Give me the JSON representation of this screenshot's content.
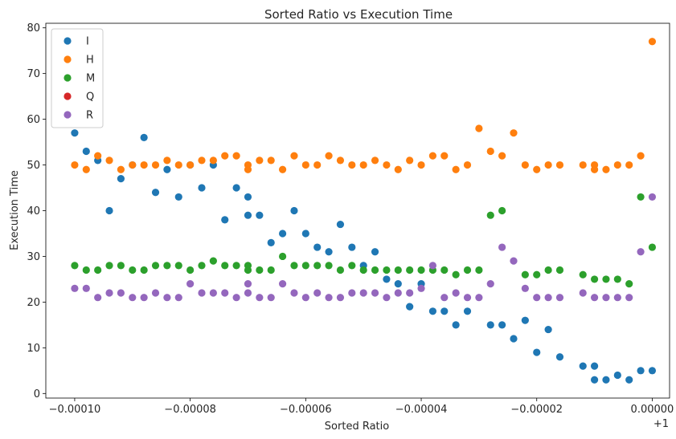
{
  "chart_data": {
    "type": "scatter",
    "title": "Sorted Ratio vs Execution Time",
    "xlabel": "Sorted Ratio",
    "ylabel": "Execution Time",
    "x_offset_label": "+1",
    "xlim": [
      -0.000105,
      3e-06
    ],
    "ylim": [
      -1,
      81
    ],
    "x_ticks": [
      -0.0001,
      -8e-05,
      -6e-05,
      -4e-05,
      -2e-05,
      0.0
    ],
    "x_tick_labels": [
      "−0.00010",
      "−0.00008",
      "−0.00006",
      "−0.00004",
      "−0.00002",
      "0.00000"
    ],
    "y_ticks": [
      0,
      10,
      20,
      30,
      40,
      50,
      60,
      70,
      80
    ],
    "y_tick_labels": [
      "0",
      "10",
      "20",
      "30",
      "40",
      "50",
      "60",
      "70",
      "80"
    ],
    "grid": false,
    "legend_position": "top-left",
    "series": [
      {
        "name": "I",
        "color": "#1f77b4",
        "points": [
          [
            -0.0001,
            57
          ],
          [
            -9.8e-05,
            53
          ],
          [
            -9.6e-05,
            51
          ],
          [
            -9.4e-05,
            40
          ],
          [
            -9.2e-05,
            47
          ],
          [
            -9e-05,
            50
          ],
          [
            -8.8e-05,
            56
          ],
          [
            -8.6e-05,
            44
          ],
          [
            -8.4e-05,
            49
          ],
          [
            -8.2e-05,
            43
          ],
          [
            -8e-05,
            50
          ],
          [
            -7.8e-05,
            45
          ],
          [
            -7.6e-05,
            50
          ],
          [
            -7.4e-05,
            38
          ],
          [
            -7.2e-05,
            45
          ],
          [
            -7e-05,
            43
          ],
          [
            -7e-05,
            39
          ],
          [
            -6.8e-05,
            39
          ],
          [
            -6.6e-05,
            33
          ],
          [
            -6.4e-05,
            35
          ],
          [
            -6.2e-05,
            40
          ],
          [
            -6e-05,
            35
          ],
          [
            -5.8e-05,
            32
          ],
          [
            -5.6e-05,
            31
          ],
          [
            -5.4e-05,
            37
          ],
          [
            -5.2e-05,
            32
          ],
          [
            -5e-05,
            28
          ],
          [
            -4.8e-05,
            31
          ],
          [
            -4.6e-05,
            25
          ],
          [
            -4.4e-05,
            24
          ],
          [
            -4.2e-05,
            19
          ],
          [
            -4e-05,
            24
          ],
          [
            -3.8e-05,
            18
          ],
          [
            -3.6e-05,
            18
          ],
          [
            -3.4e-05,
            15
          ],
          [
            -3.2e-05,
            18
          ],
          [
            -2.8e-05,
            15
          ],
          [
            -2.6e-05,
            15
          ],
          [
            -2.4e-05,
            12
          ],
          [
            -2.2e-05,
            16
          ],
          [
            -2e-05,
            9
          ],
          [
            -1.8e-05,
            14
          ],
          [
            -1.6e-05,
            8
          ],
          [
            -1.2e-05,
            6
          ],
          [
            -1e-05,
            6
          ],
          [
            -1e-05,
            3
          ],
          [
            -8e-06,
            3
          ],
          [
            -6e-06,
            4
          ],
          [
            -4e-06,
            3
          ],
          [
            -2e-06,
            5
          ],
          [
            0.0,
            5
          ]
        ]
      },
      {
        "name": "H",
        "color": "#ff7f0e",
        "points": [
          [
            -0.0001,
            50
          ],
          [
            -9.8e-05,
            49
          ],
          [
            -9.6e-05,
            52
          ],
          [
            -9.4e-05,
            51
          ],
          [
            -9.2e-05,
            49
          ],
          [
            -9e-05,
            50
          ],
          [
            -8.8e-05,
            50
          ],
          [
            -8.6e-05,
            50
          ],
          [
            -8.4e-05,
            51
          ],
          [
            -8.2e-05,
            50
          ],
          [
            -8e-05,
            50
          ],
          [
            -7.8e-05,
            51
          ],
          [
            -7.6e-05,
            51
          ],
          [
            -7.4e-05,
            52
          ],
          [
            -7.2e-05,
            52
          ],
          [
            -7e-05,
            50
          ],
          [
            -7e-05,
            49
          ],
          [
            -6.8e-05,
            51
          ],
          [
            -6.6e-05,
            51
          ],
          [
            -6.4e-05,
            49
          ],
          [
            -6.2e-05,
            52
          ],
          [
            -6e-05,
            50
          ],
          [
            -5.8e-05,
            50
          ],
          [
            -5.6e-05,
            52
          ],
          [
            -5.4e-05,
            51
          ],
          [
            -5.2e-05,
            50
          ],
          [
            -5e-05,
            50
          ],
          [
            -4.8e-05,
            51
          ],
          [
            -4.6e-05,
            50
          ],
          [
            -4.4e-05,
            49
          ],
          [
            -4.2e-05,
            51
          ],
          [
            -4e-05,
            50
          ],
          [
            -3.8e-05,
            52
          ],
          [
            -3.6e-05,
            52
          ],
          [
            -3.4e-05,
            49
          ],
          [
            -3.2e-05,
            50
          ],
          [
            -3e-05,
            58
          ],
          [
            -2.8e-05,
            53
          ],
          [
            -2.6e-05,
            52
          ],
          [
            -2.4e-05,
            57
          ],
          [
            -2.2e-05,
            50
          ],
          [
            -2e-05,
            49
          ],
          [
            -1.8e-05,
            50
          ],
          [
            -1.6e-05,
            50
          ],
          [
            -1.2e-05,
            50
          ],
          [
            -1e-05,
            50
          ],
          [
            -1e-05,
            49
          ],
          [
            -8e-06,
            49
          ],
          [
            -6e-06,
            50
          ],
          [
            -4e-06,
            50
          ],
          [
            -2e-06,
            52
          ],
          [
            0.0,
            77
          ]
        ]
      },
      {
        "name": "M",
        "color": "#2ca02c",
        "points": [
          [
            -0.0001,
            28
          ],
          [
            -9.8e-05,
            27
          ],
          [
            -9.6e-05,
            27
          ],
          [
            -9.4e-05,
            28
          ],
          [
            -9.2e-05,
            28
          ],
          [
            -9e-05,
            27
          ],
          [
            -8.8e-05,
            27
          ],
          [
            -8.6e-05,
            28
          ],
          [
            -8.4e-05,
            28
          ],
          [
            -8.2e-05,
            28
          ],
          [
            -8e-05,
            27
          ],
          [
            -7.8e-05,
            28
          ],
          [
            -7.6e-05,
            29
          ],
          [
            -7.4e-05,
            28
          ],
          [
            -7.2e-05,
            28
          ],
          [
            -7e-05,
            28
          ],
          [
            -7e-05,
            27
          ],
          [
            -6.8e-05,
            27
          ],
          [
            -6.6e-05,
            27
          ],
          [
            -6.4e-05,
            30
          ],
          [
            -6.2e-05,
            28
          ],
          [
            -6e-05,
            28
          ],
          [
            -5.8e-05,
            28
          ],
          [
            -5.6e-05,
            28
          ],
          [
            -5.4e-05,
            27
          ],
          [
            -5.2e-05,
            28
          ],
          [
            -5e-05,
            27
          ],
          [
            -4.8e-05,
            27
          ],
          [
            -4.6e-05,
            27
          ],
          [
            -4.4e-05,
            27
          ],
          [
            -4.2e-05,
            27
          ],
          [
            -4e-05,
            27
          ],
          [
            -3.8e-05,
            27
          ],
          [
            -3.6e-05,
            27
          ],
          [
            -3.4e-05,
            26
          ],
          [
            -3.2e-05,
            27
          ],
          [
            -3e-05,
            27
          ],
          [
            -2.8e-05,
            39
          ],
          [
            -2.6e-05,
            40
          ],
          [
            -2.2e-05,
            26
          ],
          [
            -2e-05,
            26
          ],
          [
            -1.8e-05,
            27
          ],
          [
            -1.6e-05,
            27
          ],
          [
            -1.2e-05,
            26
          ],
          [
            -1e-05,
            25
          ],
          [
            -8e-06,
            25
          ],
          [
            -6e-06,
            25
          ],
          [
            -4e-06,
            24
          ],
          [
            -2e-06,
            43
          ],
          [
            0.0,
            32
          ]
        ]
      },
      {
        "name": "Q",
        "color": "#d62728",
        "points": []
      },
      {
        "name": "R",
        "color": "#9467bd",
        "points": [
          [
            -0.0001,
            23
          ],
          [
            -9.8e-05,
            23
          ],
          [
            -9.6e-05,
            21
          ],
          [
            -9.4e-05,
            22
          ],
          [
            -9.2e-05,
            22
          ],
          [
            -9e-05,
            21
          ],
          [
            -8.8e-05,
            21
          ],
          [
            -8.6e-05,
            22
          ],
          [
            -8.4e-05,
            21
          ],
          [
            -8.2e-05,
            21
          ],
          [
            -8e-05,
            24
          ],
          [
            -7.8e-05,
            22
          ],
          [
            -7.6e-05,
            22
          ],
          [
            -7.4e-05,
            22
          ],
          [
            -7.2e-05,
            21
          ],
          [
            -7e-05,
            22
          ],
          [
            -7e-05,
            24
          ],
          [
            -6.8e-05,
            21
          ],
          [
            -6.6e-05,
            21
          ],
          [
            -6.4e-05,
            24
          ],
          [
            -6.2e-05,
            22
          ],
          [
            -6e-05,
            21
          ],
          [
            -5.8e-05,
            22
          ],
          [
            -5.6e-05,
            21
          ],
          [
            -5.4e-05,
            21
          ],
          [
            -5.2e-05,
            22
          ],
          [
            -5e-05,
            22
          ],
          [
            -4.8e-05,
            22
          ],
          [
            -4.6e-05,
            21
          ],
          [
            -4.4e-05,
            22
          ],
          [
            -4.2e-05,
            22
          ],
          [
            -4e-05,
            23
          ],
          [
            -3.8e-05,
            28
          ],
          [
            -3.6e-05,
            21
          ],
          [
            -3.4e-05,
            22
          ],
          [
            -3.2e-05,
            21
          ],
          [
            -3e-05,
            21
          ],
          [
            -2.8e-05,
            24
          ],
          [
            -2.6e-05,
            32
          ],
          [
            -2.4e-05,
            29
          ],
          [
            -2.2e-05,
            23
          ],
          [
            -2e-05,
            21
          ],
          [
            -1.8e-05,
            21
          ],
          [
            -1.6e-05,
            21
          ],
          [
            -1.2e-05,
            22
          ],
          [
            -1e-05,
            21
          ],
          [
            -8e-06,
            21
          ],
          [
            -6e-06,
            21
          ],
          [
            -4e-06,
            21
          ],
          [
            -2e-06,
            31
          ],
          [
            0.0,
            43
          ]
        ]
      }
    ]
  }
}
